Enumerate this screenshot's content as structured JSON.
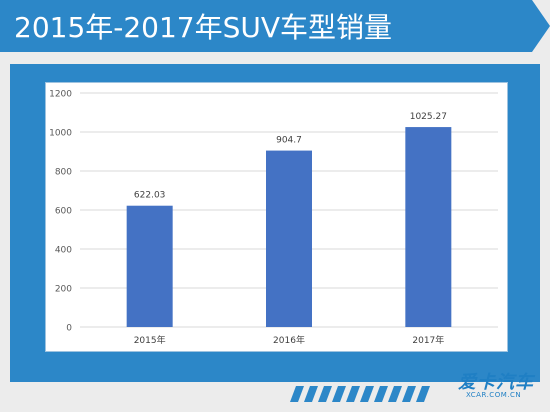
{
  "header": {
    "title": "2015年-2017年SUV车型销量"
  },
  "colors": {
    "title_band": "#2c87c8",
    "panel": "#2c87c8",
    "bar": "#4472c4",
    "gridline": "#d9d9d9",
    "background": "#ececec"
  },
  "logo": {
    "text": "爱卡汽车",
    "url_text": "XCAR.COM.CN"
  },
  "chart_data": {
    "type": "bar",
    "title": "",
    "xlabel": "",
    "ylabel": "",
    "categories": [
      "2015年",
      "2016年",
      "2017年"
    ],
    "values": [
      622.03,
      904.7,
      1025.27
    ],
    "data_labels": [
      "622.03",
      "904.7",
      "1025.27"
    ],
    "ylim": [
      0,
      1200
    ],
    "yticks": [
      0,
      200,
      400,
      600,
      800,
      1000,
      1200
    ],
    "grid": true,
    "legend": "none"
  }
}
